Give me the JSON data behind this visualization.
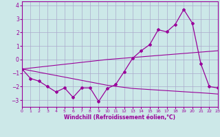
{
  "xlabel": "Windchill (Refroidissement éolien,°C)",
  "bg_color": "#cce8e8",
  "grid_color": "#aaaacc",
  "line_color": "#990099",
  "xlim": [
    0,
    23
  ],
  "ylim": [
    -3.5,
    4.3
  ],
  "xticks": [
    0,
    1,
    2,
    3,
    4,
    5,
    6,
    7,
    8,
    9,
    10,
    11,
    12,
    13,
    14,
    15,
    16,
    17,
    18,
    19,
    20,
    21,
    22,
    23
  ],
  "yticks": [
    -3,
    -2,
    -1,
    0,
    1,
    2,
    3,
    4
  ],
  "main_y": [
    -0.7,
    -1.4,
    -1.6,
    -2.0,
    -2.4,
    -2.1,
    -2.8,
    -2.1,
    -2.1,
    -3.1,
    -2.15,
    -1.85,
    -0.9,
    0.1,
    0.65,
    1.1,
    2.2,
    2.05,
    2.6,
    3.7,
    2.7,
    -0.3,
    -2.0,
    -2.1
  ],
  "trend_upper_y": [
    -0.7,
    -0.63,
    -0.56,
    -0.49,
    -0.42,
    -0.35,
    -0.28,
    -0.21,
    -0.14,
    -0.07,
    0.0,
    0.05,
    0.1,
    0.15,
    0.2,
    0.25,
    0.3,
    0.35,
    0.4,
    0.45,
    0.5,
    0.55,
    0.6,
    0.65
  ],
  "trend_lower_y": [
    -0.7,
    -0.82,
    -0.94,
    -1.06,
    -1.18,
    -1.3,
    -1.42,
    -1.54,
    -1.66,
    -1.78,
    -1.9,
    -1.98,
    -2.06,
    -2.14,
    -2.18,
    -2.22,
    -2.26,
    -2.3,
    -2.34,
    -2.38,
    -2.42,
    -2.46,
    -2.5,
    -2.55
  ]
}
